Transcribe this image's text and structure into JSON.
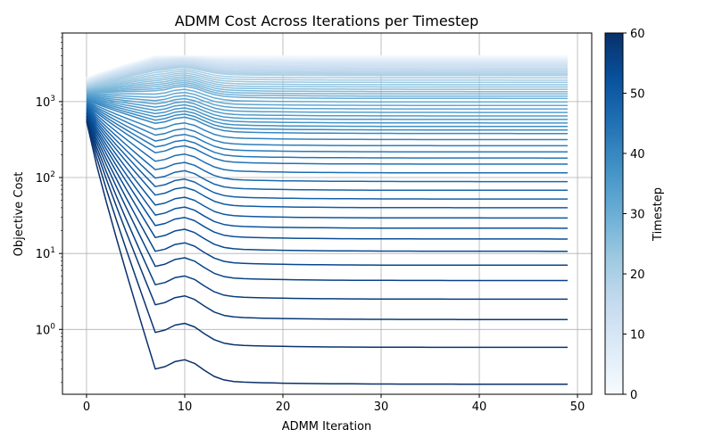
{
  "chart_data": {
    "type": "line",
    "title": "ADMM Cost Across Iterations per Timestep",
    "xlabel": "ADMM Iteration",
    "ylabel": "Objective Cost",
    "yscale": "log",
    "xlim": [
      -2.45,
      51.45
    ],
    "ylim": [
      0.14,
      8000
    ],
    "grid": true,
    "x_ticks": [
      {
        "value": 0,
        "label": "0"
      },
      {
        "value": 10,
        "label": "10"
      },
      {
        "value": 20,
        "label": "20"
      },
      {
        "value": 30,
        "label": "30"
      },
      {
        "value": 40,
        "label": "40"
      },
      {
        "value": 50,
        "label": "50"
      }
    ],
    "y_ticks": [
      {
        "value": 1,
        "base": "10",
        "exp": "0"
      },
      {
        "value": 10,
        "base": "10",
        "exp": "1"
      },
      {
        "value": 100,
        "base": "10",
        "exp": "2"
      },
      {
        "value": 1000,
        "base": "10",
        "exp": "3"
      }
    ],
    "iterations": 50,
    "series_note_timesteps": [
      0,
      60
    ],
    "series_sampled": [
      {
        "timestep": 60,
        "final": 0.19
      },
      {
        "timestep": 59,
        "final": 0.58
      },
      {
        "timestep": 58,
        "final": 1.35
      },
      {
        "timestep": 57,
        "final": 2.5
      },
      {
        "timestep": 56,
        "final": 4.4
      },
      {
        "timestep": 55,
        "final": 7.0
      },
      {
        "timestep": 54,
        "final": 10.7
      },
      {
        "timestep": 53,
        "final": 15.5
      },
      {
        "timestep": 52,
        "final": 21.5
      },
      {
        "timestep": 50,
        "final": 40
      },
      {
        "timestep": 45,
        "final": 150
      },
      {
        "timestep": 40,
        "final": 380
      },
      {
        "timestep": 30,
        "final": 1100
      },
      {
        "timestep": 20,
        "final": 2200
      },
      {
        "timestep": 10,
        "final": 3200
      },
      {
        "timestep": 0,
        "final": 4000
      }
    ],
    "colorbar": {
      "label": "Timestep",
      "min": 0,
      "max": 60,
      "ticks": [
        {
          "value": 0,
          "label": "0"
        },
        {
          "value": 10,
          "label": "10"
        },
        {
          "value": 20,
          "label": "20"
        },
        {
          "value": 30,
          "label": "30"
        },
        {
          "value": 40,
          "label": "40"
        },
        {
          "value": 50,
          "label": "50"
        },
        {
          "value": 60,
          "label": "60"
        }
      ],
      "colormap": "Blues"
    }
  }
}
